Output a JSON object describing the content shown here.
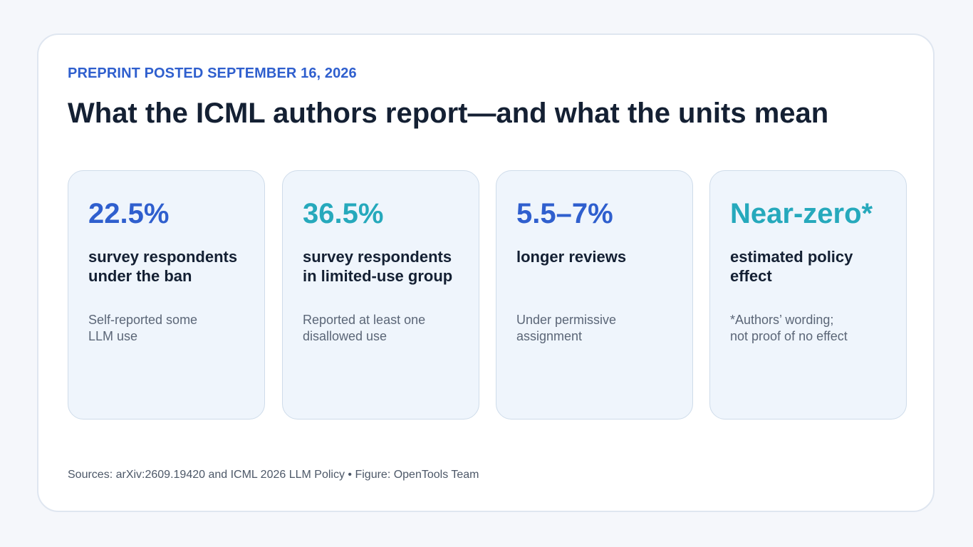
{
  "header": {
    "eyebrow": "PREPRINT POSTED SEPTEMBER 16, 2026",
    "title": "What the ICML authors report—and what the units mean"
  },
  "cards": [
    {
      "stat": "22.5%",
      "stat_color": "#2f5fce",
      "label_lines": [
        "survey respondents",
        "under the ban"
      ],
      "note_lines": [
        "Self-reported some",
        "LLM use"
      ]
    },
    {
      "stat": "36.5%",
      "stat_color": "#26a9bc",
      "label_lines": [
        "survey respondents",
        "in limited-use group"
      ],
      "note_lines": [
        "Reported at least one",
        "disallowed use"
      ]
    },
    {
      "stat": "5.5–7%",
      "stat_color": "#2f5fce",
      "label_lines": [
        "longer reviews"
      ],
      "note_lines": [
        "Under permissive",
        "assignment"
      ]
    },
    {
      "stat": "Near-zero*",
      "stat_color": "#26a9bc",
      "label_lines": [
        "estimated policy",
        "effect"
      ],
      "note_lines": [
        "*Authors’ wording;",
        "not proof of no effect"
      ]
    }
  ],
  "footer": {
    "sources": "Sources: arXiv:2609.19420 and ICML 2026 LLM Policy • Figure: OpenTools Team"
  },
  "colors": {
    "accent_blue": "#2f5fce",
    "accent_teal": "#26a9bc",
    "heading": "#142033",
    "card_bg": "#eff5fc"
  }
}
